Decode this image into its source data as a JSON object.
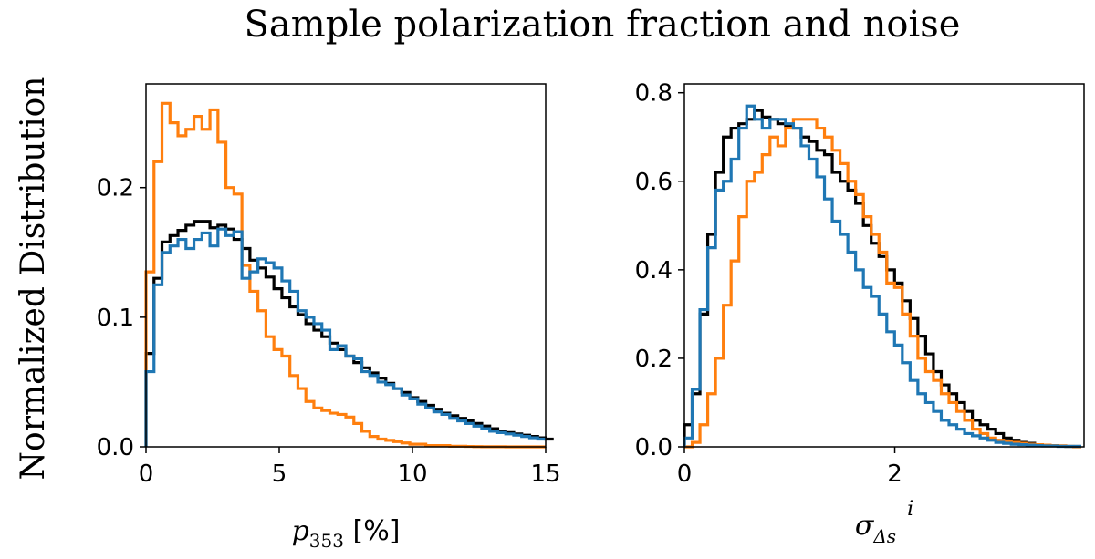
{
  "figure": {
    "title": "Sample polarization fraction and noise",
    "ylabel": "Normalized Distribution"
  },
  "colors": {
    "black": "#000000",
    "orange": "#ff7f0e",
    "blue": "#1f77b4"
  },
  "chart_data": [
    {
      "type": "histogram-step",
      "title": "",
      "xlabel": {
        "var": "p",
        "sub": "353",
        "unit": " [%]"
      },
      "ylabel": "Normalized Distribution",
      "xlim": [
        0,
        15
      ],
      "ylim": [
        0,
        0.28
      ],
      "xticks": [
        0,
        5,
        10,
        15
      ],
      "xtick_labels": [
        "0",
        "5",
        "10",
        "15"
      ],
      "yticks": [
        0.0,
        0.1,
        0.2
      ],
      "ytick_labels": [
        "0.0",
        "0.1",
        "0.2"
      ],
      "bin_width": 0.3,
      "series": [
        {
          "name": "black",
          "color": "#000000",
          "values": [
            0.072,
            0.13,
            0.158,
            0.163,
            0.167,
            0.171,
            0.174,
            0.174,
            0.169,
            0.171,
            0.168,
            0.16,
            0.153,
            0.144,
            0.138,
            0.131,
            0.122,
            0.115,
            0.108,
            0.102,
            0.095,
            0.09,
            0.085,
            0.08,
            0.075,
            0.07,
            0.065,
            0.061,
            0.057,
            0.053,
            0.049,
            0.045,
            0.042,
            0.038,
            0.035,
            0.032,
            0.029,
            0.026,
            0.024,
            0.022,
            0.02,
            0.018,
            0.016,
            0.014,
            0.012,
            0.011,
            0.01,
            0.009,
            0.008,
            0.007,
            0.006
          ]
        },
        {
          "name": "orange",
          "color": "#ff7f0e",
          "values": [
            0.135,
            0.22,
            0.265,
            0.25,
            0.24,
            0.245,
            0.255,
            0.245,
            0.26,
            0.235,
            0.2,
            0.195,
            0.14,
            0.12,
            0.105,
            0.085,
            0.075,
            0.07,
            0.055,
            0.045,
            0.035,
            0.03,
            0.028,
            0.026,
            0.025,
            0.023,
            0.018,
            0.012,
            0.008,
            0.006,
            0.005,
            0.004,
            0.003,
            0.002,
            0.002,
            0.001,
            0.001,
            0.001,
            0.0005,
            0.0005,
            0.0003,
            0.0002,
            0.0001,
            0.0001,
            0.0001,
            0.0,
            0.0,
            0.0,
            0.0,
            0.0
          ]
        },
        {
          "name": "blue",
          "color": "#1f77b4",
          "values": [
            0.058,
            0.125,
            0.15,
            0.155,
            0.16,
            0.153,
            0.16,
            0.165,
            0.155,
            0.168,
            0.163,
            0.166,
            0.13,
            0.135,
            0.145,
            0.142,
            0.138,
            0.128,
            0.12,
            0.105,
            0.1,
            0.095,
            0.09,
            0.075,
            0.078,
            0.07,
            0.068,
            0.058,
            0.055,
            0.05,
            0.048,
            0.045,
            0.04,
            0.037,
            0.033,
            0.03,
            0.027,
            0.025,
            0.022,
            0.02,
            0.018,
            0.016,
            0.014,
            0.012,
            0.011,
            0.01,
            0.009,
            0.008,
            0.007,
            0.006
          ]
        }
      ]
    },
    {
      "type": "histogram-step",
      "title": "",
      "xlabel": {
        "var": "σ",
        "sub": "Δs",
        "sup": "i"
      },
      "ylabel": "",
      "xlim": [
        0,
        3.8
      ],
      "ylim": [
        0,
        0.82
      ],
      "xticks": [
        0,
        2
      ],
      "xtick_labels": [
        "0",
        "2"
      ],
      "yticks": [
        0.0,
        0.2,
        0.4,
        0.6,
        0.8
      ],
      "ytick_labels": [
        "0.0",
        "0.2",
        "0.4",
        "0.6",
        "0.8"
      ],
      "bin_width": 0.074,
      "series": [
        {
          "name": "black",
          "color": "#000000",
          "values": [
            0.05,
            0.12,
            0.3,
            0.48,
            0.62,
            0.7,
            0.72,
            0.73,
            0.74,
            0.76,
            0.745,
            0.74,
            0.73,
            0.725,
            0.72,
            0.7,
            0.69,
            0.67,
            0.66,
            0.62,
            0.6,
            0.58,
            0.55,
            0.5,
            0.46,
            0.43,
            0.4,
            0.37,
            0.33,
            0.29,
            0.25,
            0.21,
            0.17,
            0.14,
            0.12,
            0.1,
            0.08,
            0.06,
            0.05,
            0.04,
            0.03,
            0.02,
            0.015,
            0.01,
            0.008,
            0.005,
            0.004,
            0.003,
            0.002,
            0.001,
            0.001
          ]
        },
        {
          "name": "orange",
          "color": "#ff7f0e",
          "values": [
            0.0,
            0.01,
            0.05,
            0.12,
            0.2,
            0.32,
            0.42,
            0.52,
            0.6,
            0.62,
            0.66,
            0.7,
            0.68,
            0.72,
            0.74,
            0.74,
            0.74,
            0.72,
            0.7,
            0.67,
            0.64,
            0.6,
            0.57,
            0.52,
            0.48,
            0.44,
            0.37,
            0.36,
            0.3,
            0.25,
            0.2,
            0.17,
            0.15,
            0.12,
            0.1,
            0.08,
            0.06,
            0.04,
            0.03,
            0.02,
            0.015,
            0.012,
            0.01,
            0.008,
            0.006,
            0.005,
            0.004,
            0.003,
            0.002,
            0.001,
            0.0
          ]
        },
        {
          "name": "blue",
          "color": "#1f77b4",
          "values": [
            0.02,
            0.13,
            0.31,
            0.45,
            0.58,
            0.6,
            0.65,
            0.72,
            0.77,
            0.74,
            0.72,
            0.74,
            0.74,
            0.73,
            0.72,
            0.68,
            0.65,
            0.61,
            0.56,
            0.51,
            0.48,
            0.44,
            0.4,
            0.36,
            0.34,
            0.3,
            0.26,
            0.23,
            0.19,
            0.15,
            0.12,
            0.1,
            0.08,
            0.06,
            0.05,
            0.04,
            0.03,
            0.025,
            0.02,
            0.015,
            0.01,
            0.008,
            0.006,
            0.005,
            0.004,
            0.003,
            0.002,
            0.002,
            0.001,
            0.001,
            0.001
          ]
        }
      ]
    }
  ]
}
